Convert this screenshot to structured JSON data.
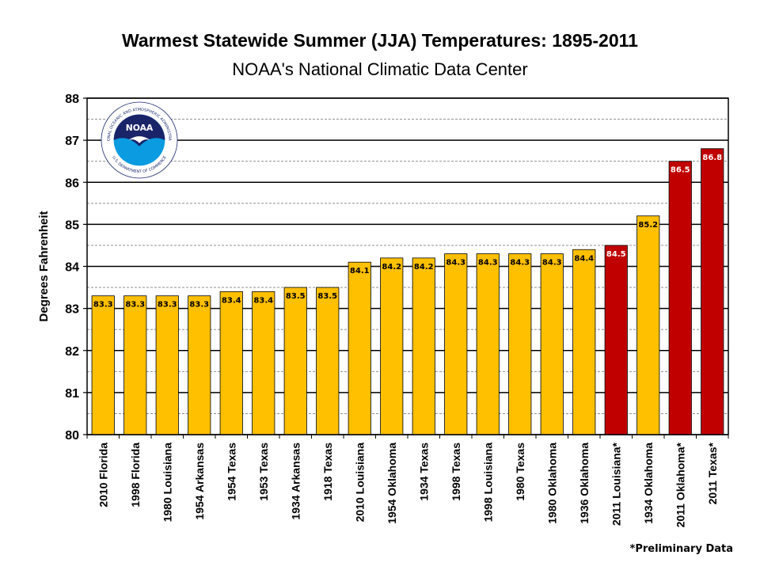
{
  "chart_data": {
    "type": "bar",
    "title": "Warmest Statewide Summer (JJA) Temperatures: 1895-2011",
    "subtitle": "NOAA's National Climatic Data Center",
    "ylabel": "Degrees Fahrenheit",
    "xlabel": "",
    "ylim": [
      80,
      88
    ],
    "yticks": [
      80,
      81,
      82,
      83,
      84,
      85,
      86,
      87,
      88
    ],
    "grid": true,
    "categories": [
      "2010 Florida",
      "1998 Florida",
      "1980 Louisiana",
      "1954 Arkansas",
      "1954 Texas",
      "1953 Texas",
      "1934 Arkansas",
      "1918 Texas",
      "2010 Louisiana",
      "1954 Oklahoma",
      "1934 Texas",
      "1998 Texas",
      "1998 Louisiana",
      "1980 Texas",
      "1980 Oklahoma",
      "1936 Oklahoma",
      "2011 Louisiana*",
      "1934 Oklahoma",
      "2011 Oklahoma*",
      "2011 Texas*"
    ],
    "values": [
      83.3,
      83.3,
      83.3,
      83.3,
      83.4,
      83.4,
      83.5,
      83.5,
      84.1,
      84.2,
      84.2,
      84.3,
      84.3,
      84.3,
      84.3,
      84.4,
      84.5,
      85.2,
      86.5,
      86.8
    ],
    "labels": [
      "83.3",
      "83.3",
      "83.3",
      "83.3",
      "83.4",
      "83.4",
      "83.5",
      "83.5",
      "84.1",
      "84.2",
      "84.2",
      "84.3",
      "84.3",
      "84.3",
      "84.3",
      "84.4",
      "84.5",
      "85.2",
      "86.5",
      "86.8"
    ],
    "highlight": [
      false,
      false,
      false,
      false,
      false,
      false,
      false,
      false,
      false,
      false,
      false,
      false,
      false,
      false,
      false,
      false,
      true,
      false,
      true,
      true
    ],
    "colors": {
      "normal": "#FFC000",
      "highlight": "#C00000",
      "label_normal": "#000000",
      "label_highlight": "#FFFFFF"
    }
  },
  "footnote": "*Preliminary Data",
  "logo": {
    "icon": "noaa-logo-icon",
    "text": "NOAA",
    "ring_text": "NATIONAL OCEANIC AND ATMOSPHERIC ADMINISTRATION",
    "ring_text_bottom": "U.S. DEPARTMENT OF COMMERCE"
  }
}
